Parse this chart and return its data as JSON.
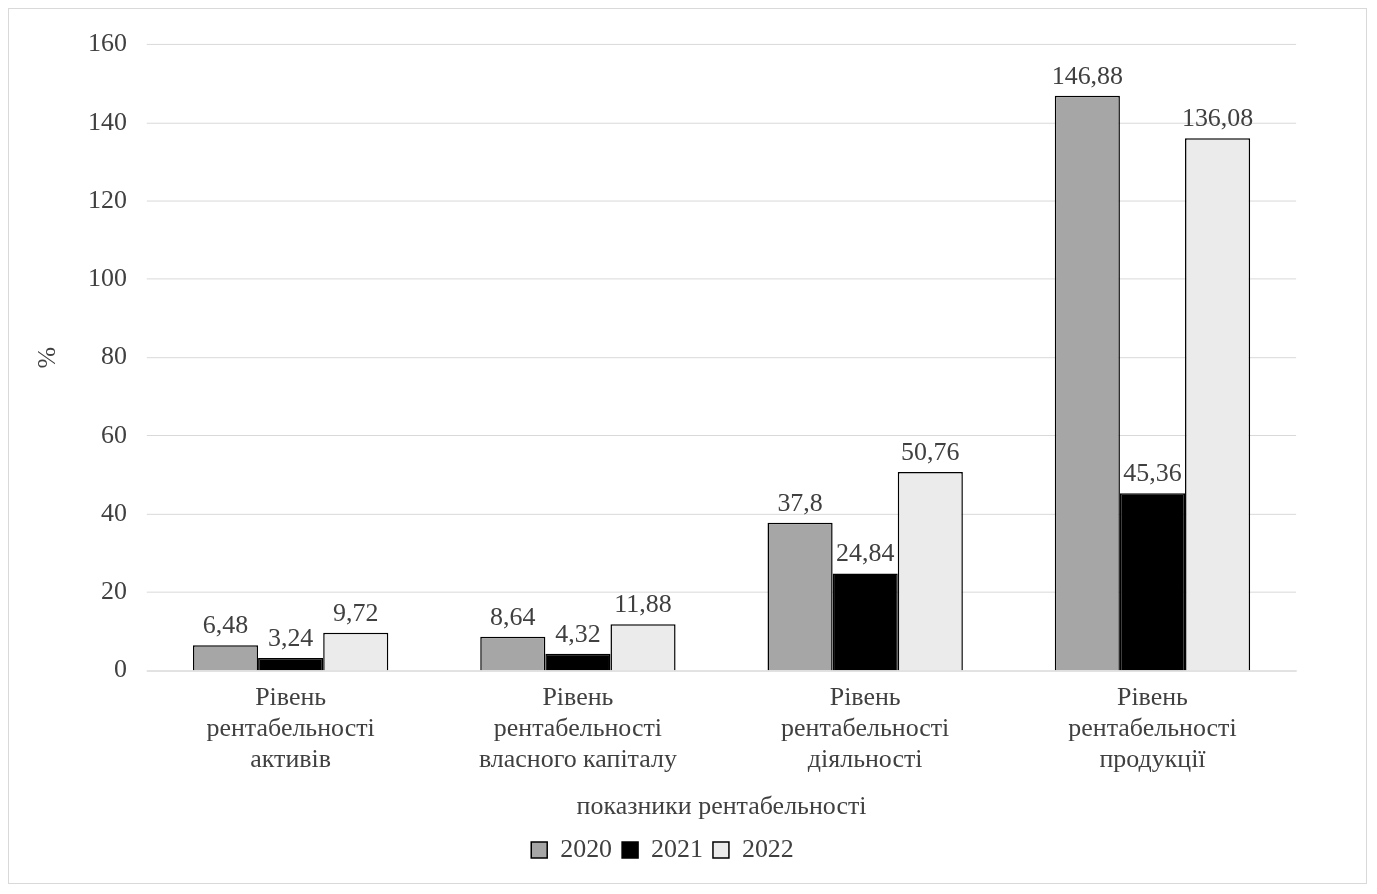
{
  "chart_data": {
    "type": "bar",
    "xlabel": "показники рентабельності",
    "ylabel": "%",
    "categories": [
      "Рівень рентабельності активів",
      "Рівень рентабельності власного капіталу",
      "Рівень рентабельності діяльності",
      "Рівень рентабельності продукції"
    ],
    "series": [
      {
        "name": "2020",
        "color": "#a6a6a6",
        "values": [
          6.48,
          8.64,
          37.8,
          146.88
        ],
        "value_labels": [
          "6,48",
          "8,64",
          "37,8",
          "146,88"
        ]
      },
      {
        "name": "2021",
        "color": "#000000",
        "values": [
          3.24,
          4.32,
          24.84,
          45.36
        ],
        "value_labels": [
          "3,24",
          "4,32",
          "24,84",
          "45,36"
        ]
      },
      {
        "name": "2022",
        "color": "#ebebeb",
        "values": [
          9.72,
          11.88,
          50.76,
          136.08
        ],
        "value_labels": [
          "9,72",
          "11,88",
          "50,76",
          "136,08"
        ]
      }
    ],
    "ylim": [
      0,
      160
    ],
    "yticks": [
      0,
      20,
      40,
      60,
      80,
      100,
      120,
      140,
      160
    ],
    "grid": "y",
    "legend": "bottom"
  }
}
